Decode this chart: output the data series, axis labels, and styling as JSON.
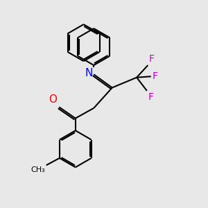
{
  "background_color": "#e8e8e8",
  "bond_color": "#000000",
  "atom_colors": {
    "O": "#ff0000",
    "N": "#0000ff",
    "F": "#cc00cc",
    "C": "#000000"
  },
  "line_width": 1.5,
  "dbo": 0.08
}
